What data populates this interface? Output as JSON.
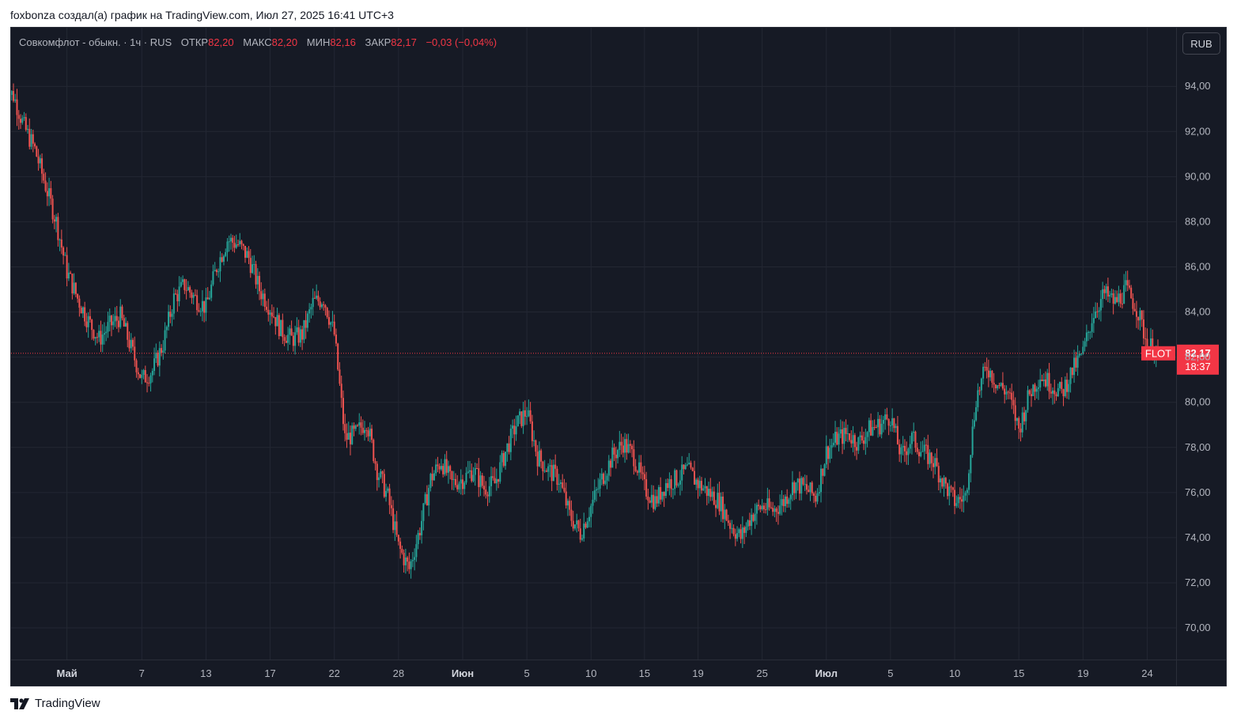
{
  "caption": "foxbonza создал(а) график на TradingView.com, Июл 27, 2025 16:41 UTC+3",
  "legend": {
    "instrument": "Совкомфлот - обыкн. · 1ч · RUS",
    "open_label": "ОТКР",
    "open_value": "82,20",
    "high_label": "МАКС",
    "high_value": "82,20",
    "low_label": "МИН",
    "low_value": "82,16",
    "close_label": "ЗАКР",
    "close_value": "82,17",
    "change": "−0,03 (−0,04%)"
  },
  "currency_button": "RUB",
  "price_tag": {
    "ticker": "FLOT",
    "price": "82,17",
    "countdown": "18:37"
  },
  "footer": {
    "brand": "TradingView"
  },
  "colors": {
    "up": "#26a69a",
    "down": "#ef5350",
    "background": "#161a25",
    "grid": "#232733",
    "price_line": "#f23645"
  },
  "chart_data": {
    "type": "line",
    "chart_style": "candlestick",
    "y_axis": {
      "range": [
        68.6,
        96.6
      ],
      "ticks": [
        "94,00",
        "92,00",
        "90,00",
        "88,00",
        "86,00",
        "84,00",
        "82,00",
        "80,00",
        "78,00",
        "76,00",
        "74,00",
        "72,00",
        "70,00"
      ],
      "tick_values": [
        94,
        92,
        90,
        88,
        86,
        84,
        82,
        80,
        78,
        76,
        74,
        72,
        70
      ]
    },
    "x_axis": {
      "labels": [
        {
          "text": "Май",
          "bold": true
        },
        {
          "text": "7",
          "bold": false
        },
        {
          "text": "13",
          "bold": false
        },
        {
          "text": "17",
          "bold": false
        },
        {
          "text": "22",
          "bold": false
        },
        {
          "text": "28",
          "bold": false
        },
        {
          "text": "Июн",
          "bold": true
        },
        {
          "text": "5",
          "bold": false
        },
        {
          "text": "10",
          "bold": false
        },
        {
          "text": "15",
          "bold": false
        },
        {
          "text": "19",
          "bold": false
        },
        {
          "text": "25",
          "bold": false
        },
        {
          "text": "Июл",
          "bold": true
        },
        {
          "text": "5",
          "bold": false
        },
        {
          "text": "10",
          "bold": false
        },
        {
          "text": "15",
          "bold": false
        },
        {
          "text": "19",
          "bold": false
        },
        {
          "text": "24",
          "bold": false
        }
      ],
      "label_index": [
        5,
        12,
        18,
        24,
        30,
        36,
        42,
        48,
        54,
        59,
        64,
        70,
        76,
        82,
        88,
        94,
        100,
        106
      ]
    },
    "last_price": 82.17,
    "series": [
      {
        "values": [
          93.6,
          92.2,
          91.2,
          89.6,
          88.0,
          85.8,
          84.6,
          83.6,
          82.8,
          83.4,
          83.8,
          82.4,
          81.0,
          81.4,
          82.6,
          84.6,
          85.2,
          84.6,
          84.2,
          86.0,
          87.2,
          87.0,
          86.4,
          85.0,
          84.2,
          83.2,
          82.8,
          83.0,
          84.4,
          84.6,
          83.0,
          78.4,
          78.6,
          79.2,
          77.0,
          75.8,
          73.6,
          72.6,
          74.4,
          76.6,
          77.4,
          76.4,
          76.6,
          77.0,
          76.2,
          76.4,
          77.8,
          79.0,
          79.6,
          77.6,
          77.0,
          76.6,
          75.0,
          74.2,
          75.4,
          76.6,
          77.6,
          78.2,
          77.6,
          76.2,
          75.6,
          76.4,
          76.6,
          77.0,
          76.4,
          76.0,
          75.6,
          74.6,
          74.0,
          75.0,
          75.4,
          75.2,
          75.6,
          76.4,
          76.2,
          75.8,
          77.8,
          78.4,
          78.6,
          78.2,
          78.8,
          79.0,
          79.4,
          77.6,
          78.4,
          77.8,
          77.4,
          76.4,
          75.6,
          75.8,
          80.2,
          81.6,
          80.8,
          80.4,
          78.8,
          80.4,
          81.2,
          80.8,
          80.4,
          81.4,
          82.2,
          84.0,
          84.8,
          84.4,
          85.0,
          84.2,
          82.6,
          82.17
        ]
      }
    ]
  }
}
